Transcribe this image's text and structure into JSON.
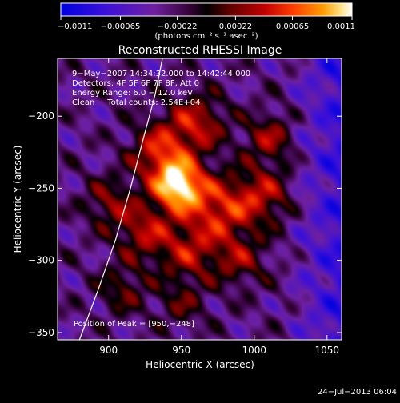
{
  "chart_data": {
    "type": "heatmap",
    "title": "Reconstructed RHESSI Image",
    "xlabel": "Heliocentric X (arcsec)",
    "ylabel": "Heliocentric Y (arcsec)",
    "xlim": [
      865,
      1060
    ],
    "ylim": [
      -355,
      -160
    ],
    "x_ticks": [
      900,
      950,
      1000,
      1050
    ],
    "x_tick_labels": [
      "900",
      "950",
      "1000",
      "1050"
    ],
    "y_ticks": [
      -200,
      -250,
      -300,
      -350
    ],
    "y_tick_labels": [
      "−200",
      "−250",
      "−300",
      "−350"
    ],
    "colorbar": {
      "min": -0.0011,
      "max": 0.0011,
      "ticks": [
        -0.0011,
        -0.00065,
        -0.00022,
        0.00022,
        0.00065,
        0.0011
      ],
      "tick_labels": [
        "−0.0011",
        "−0.00065",
        "−0.00022",
        "0.00022",
        "0.00065",
        "0.0011"
      ],
      "units": "(photons cm⁻² s⁻¹ asec⁻²)",
      "colors": [
        "#0000e0",
        "#4000d0",
        "#7000b0",
        "#300030",
        "#000000",
        "#600000",
        "#c00000",
        "#ff4000",
        "#ff9000",
        "#ffd000",
        "#ffffff"
      ]
    },
    "annotations": [
      "9−May−2007 14:34:32.000 to 14:42:44.000",
      "Detectors: 4F 5F 6F 7F 8F, Att 0",
      "Energy Range: 6.0 − 12.0 keV",
      "Clean     Total counts: 2.54E+04"
    ],
    "peak_label": "Position of Peak = [950,−248]",
    "peak": [
      950,
      -248
    ],
    "limb_points": [
      [
        880,
        -355
      ],
      [
        893,
        -320
      ],
      [
        905,
        -285
      ],
      [
        915,
        -250
      ],
      [
        924,
        -215
      ],
      [
        932,
        -185
      ],
      [
        937,
        -160
      ]
    ],
    "sources": [
      {
        "x": 948,
        "y": -248,
        "sigma": 12,
        "amp": 1.0
      },
      {
        "x": 935,
        "y": -225,
        "sigma": 14,
        "amp": 0.55
      },
      {
        "x": 960,
        "y": -205,
        "sigma": 14,
        "amp": 0.5
      },
      {
        "x": 975,
        "y": -265,
        "sigma": 16,
        "amp": 0.55
      },
      {
        "x": 1005,
        "y": -255,
        "sigma": 14,
        "amp": 0.45
      },
      {
        "x": 1010,
        "y": -215,
        "sigma": 12,
        "amp": 0.4
      },
      {
        "x": 925,
        "y": -280,
        "sigma": 14,
        "amp": 0.45
      },
      {
        "x": 955,
        "y": -295,
        "sigma": 14,
        "amp": 0.4
      },
      {
        "x": 990,
        "y": -300,
        "sigma": 13,
        "amp": 0.35
      },
      {
        "x": 900,
        "y": -260,
        "sigma": 12,
        "amp": 0.35
      },
      {
        "x": 910,
        "y": -320,
        "sigma": 12,
        "amp": 0.3
      },
      {
        "x": 950,
        "y": -330,
        "sigma": 12,
        "amp": 0.25
      }
    ]
  },
  "footer": {
    "timestamp": "24−Jul−2013 06:04"
  }
}
